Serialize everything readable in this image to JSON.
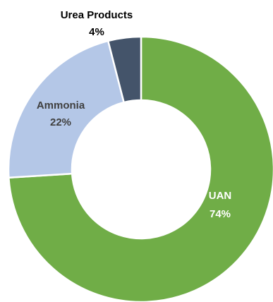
{
  "chart_data": {
    "type": "pie",
    "variant": "donut",
    "slices": [
      {
        "label": "UAN",
        "value": 74,
        "value_label": "74%",
        "color": "#70ad47",
        "label_color": "#ffffff"
      },
      {
        "label": "Ammonia",
        "value": 22,
        "value_label": "22%",
        "color": "#b4c7e7",
        "label_color": "#404040"
      },
      {
        "label": "Urea Products",
        "value": 4,
        "value_label": "4%",
        "color": "#44546a",
        "label_color": "#000000"
      }
    ],
    "start_angle_deg": 0,
    "direction": "clockwise",
    "legend": "none"
  }
}
